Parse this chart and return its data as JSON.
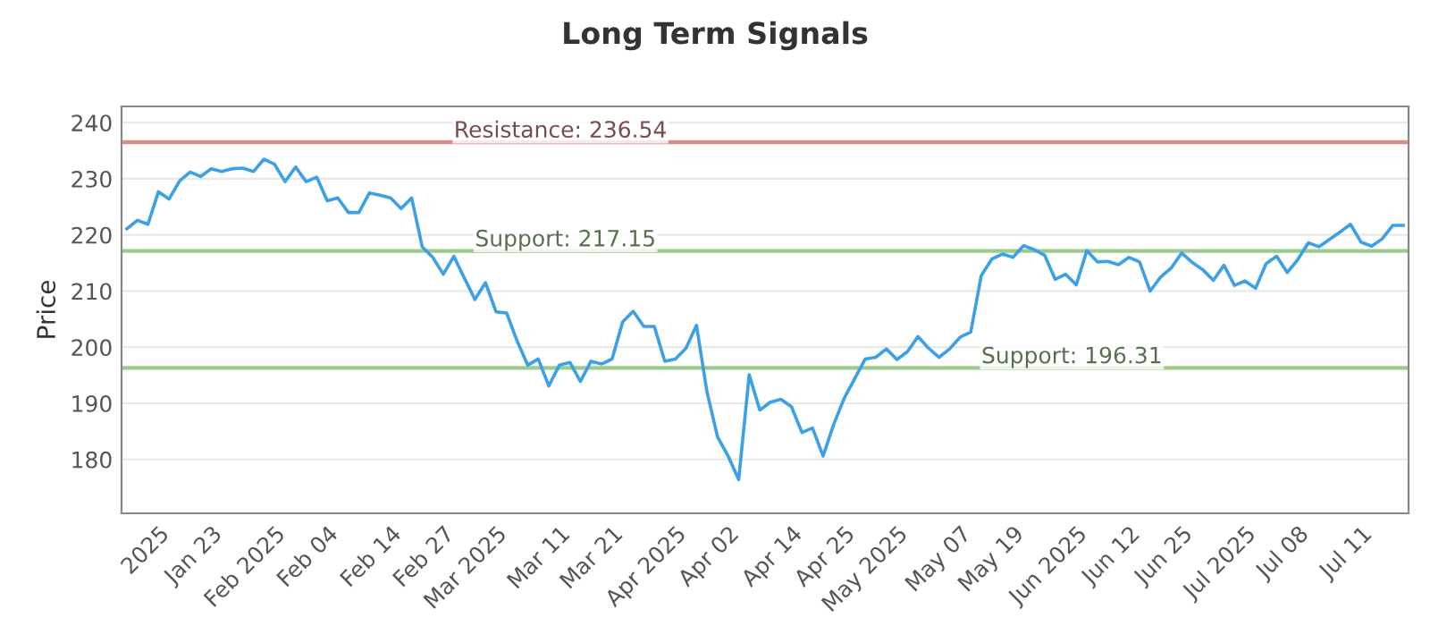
{
  "chart_data": {
    "type": "line",
    "title": "Long Term Signals",
    "ylabel": "Price",
    "categories": [
      null,
      null,
      null,
      "2025",
      null,
      null,
      null,
      null,
      "Jan 23",
      null,
      null,
      null,
      null,
      null,
      "Feb 2025",
      null,
      null,
      null,
      null,
      "Feb 04",
      null,
      null,
      null,
      null,
      null,
      "Feb 14",
      null,
      null,
      null,
      null,
      "Feb 27",
      null,
      null,
      null,
      null,
      "Mar 2025",
      null,
      null,
      null,
      null,
      null,
      "Mar 11",
      null,
      null,
      null,
      null,
      "Mar 21",
      null,
      null,
      null,
      null,
      null,
      "Apr 2025",
      null,
      null,
      null,
      null,
      "Apr 02",
      null,
      null,
      null,
      null,
      null,
      "Apr 14",
      null,
      null,
      null,
      null,
      "Apr 25",
      null,
      null,
      null,
      null,
      "May 2025",
      null,
      null,
      null,
      null,
      null,
      "May 07",
      null,
      null,
      null,
      null,
      "May 19",
      null,
      null,
      null,
      null,
      null,
      "Jun 2025",
      null,
      null,
      null,
      null,
      "Jun 12",
      null,
      null,
      null,
      null,
      "Jun 25",
      null,
      null,
      null,
      null,
      null,
      "Jul 2025",
      null,
      null,
      null,
      null,
      "Jul 08",
      null,
      null,
      null,
      null,
      null,
      "Jul 11",
      null,
      null,
      null,
      null
    ],
    "series": [
      {
        "color": "#3ca0e6",
        "values": [
          221.1,
          222.6,
          221.9,
          227.7,
          226.4,
          229.6,
          231.2,
          230.4,
          231.8,
          231.3,
          231.8,
          231.9,
          231.3,
          233.5,
          232.6,
          229.5,
          232.1,
          229.5,
          230.3,
          226.1,
          226.6,
          224.0,
          224.0,
          227.5,
          227.1,
          226.6,
          224.7,
          226.6,
          217.9,
          216.0,
          213.0,
          216.2,
          212.3,
          208.5,
          211.5,
          206.3,
          206.1,
          201.1,
          196.8,
          197.9,
          193.1,
          196.8,
          197.3,
          193.9,
          197.5,
          197.0,
          197.9,
          204.5,
          206.4,
          203.7,
          203.7,
          197.5,
          197.9,
          199.8,
          203.9,
          192.0,
          184.0,
          180.6,
          176.4,
          195.1,
          188.8,
          190.2,
          190.7,
          189.4,
          184.8,
          185.6,
          180.6,
          186.2,
          190.9,
          194.4,
          197.9,
          198.2,
          199.7,
          197.8,
          199.2,
          201.9,
          199.8,
          198.2,
          199.7,
          201.8,
          202.7,
          212.8,
          215.7,
          216.6,
          216.0,
          218.1,
          217.4,
          216.4,
          212.1,
          213.0,
          211.1,
          217.2,
          215.2,
          215.3,
          214.7,
          216.0,
          215.2,
          210.0,
          212.5,
          214.1,
          216.8,
          215.1,
          213.8,
          211.9,
          214.6,
          211.0,
          211.8,
          210.5,
          214.9,
          216.2,
          213.3,
          215.6,
          218.6,
          217.9,
          219.2,
          220.5,
          221.9,
          218.7,
          218.0,
          219.3,
          221.7,
          221.7
        ]
      }
    ],
    "ylim": [
      170.4,
      242.9
    ],
    "yticks": [
      180,
      190,
      200,
      210,
      220,
      230,
      240
    ],
    "grid": "y",
    "marker": "none",
    "line_style": "solid",
    "ref_lines": [
      {
        "axis": "y",
        "value": 236.54,
        "label": "Resistance: 236.54",
        "color": "#d98a87"
      },
      {
        "axis": "y",
        "value": 217.15,
        "label": "Support: 217.15",
        "color": "#9ccc8c"
      },
      {
        "axis": "y",
        "value": 196.31,
        "label": "Support: 196.31",
        "color": "#9ccc8c"
      }
    ]
  }
}
